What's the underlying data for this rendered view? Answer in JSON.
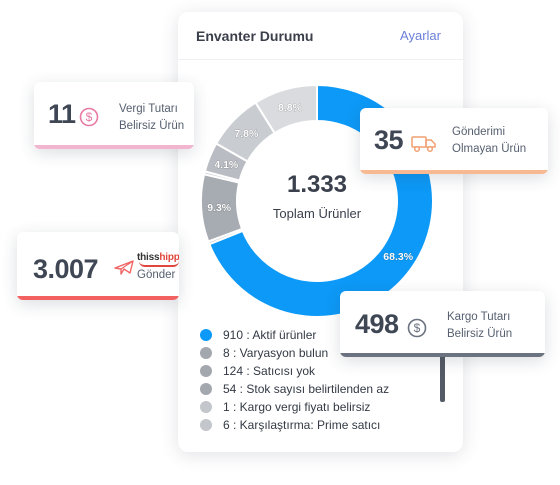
{
  "panel": {
    "title": "Envanter Durumu",
    "settings_label": "Ayarlar"
  },
  "donut": {
    "total": "1.333",
    "total_label": "Toplam Ürünler",
    "segments": [
      {
        "label": "68.3%",
        "value": 68.3,
        "color": "#0d99f7"
      },
      {
        "label": "",
        "value": 0.4,
        "color": "#d4d6da"
      },
      {
        "label": "9.3%",
        "value": 9.3,
        "color": "#a7abb2"
      },
      {
        "label": "",
        "value": 0.4,
        "color": "#c8cbd0"
      },
      {
        "label": "4.1%",
        "value": 4.1,
        "color": "#b9bcc2"
      },
      {
        "label": "7.8%",
        "value": 7.8,
        "color": "#c9ccd1"
      },
      {
        "label": "8.8%",
        "value": 8.8,
        "color": "#d9dbdf"
      }
    ]
  },
  "legend": [
    {
      "text": "910 : Aktif ürünler",
      "color": "#0d99f7"
    },
    {
      "text": "8 : Varyasyon bulun",
      "color": "#a3a7ae"
    },
    {
      "text": "124 : Satıcısı yok",
      "color": "#a3a7ae"
    },
    {
      "text": "54 : Stok sayısı belirtilenden az",
      "color": "#a3a7ae"
    },
    {
      "text": "1 : Kargo vergi fiyatı belirsiz",
      "color": "#c3c6cb"
    },
    {
      "text": "6 : Karşılaştırma: Prime satıcı",
      "color": "#c3c6cb"
    }
  ],
  "cards": {
    "tax": {
      "value": "11",
      "label1": "Vergi Tutarı",
      "label2": "Belirsiz Ürün",
      "icon": "dollar-circle-icon"
    },
    "ship": {
      "value": "35",
      "label1": "Gönderimi",
      "label2": "Olmayan Ürün",
      "icon": "truck-icon"
    },
    "thiss": {
      "value": "3.007",
      "brand_a": "thiss",
      "brand_b": "hipp",
      "label1": "Gönder",
      "icon": "airplane-icon"
    },
    "cargo": {
      "value": "498",
      "label1": "Kargo Tutarı",
      "label2": "Belirsiz Ürün",
      "icon": "dollar-circle-icon"
    }
  }
}
